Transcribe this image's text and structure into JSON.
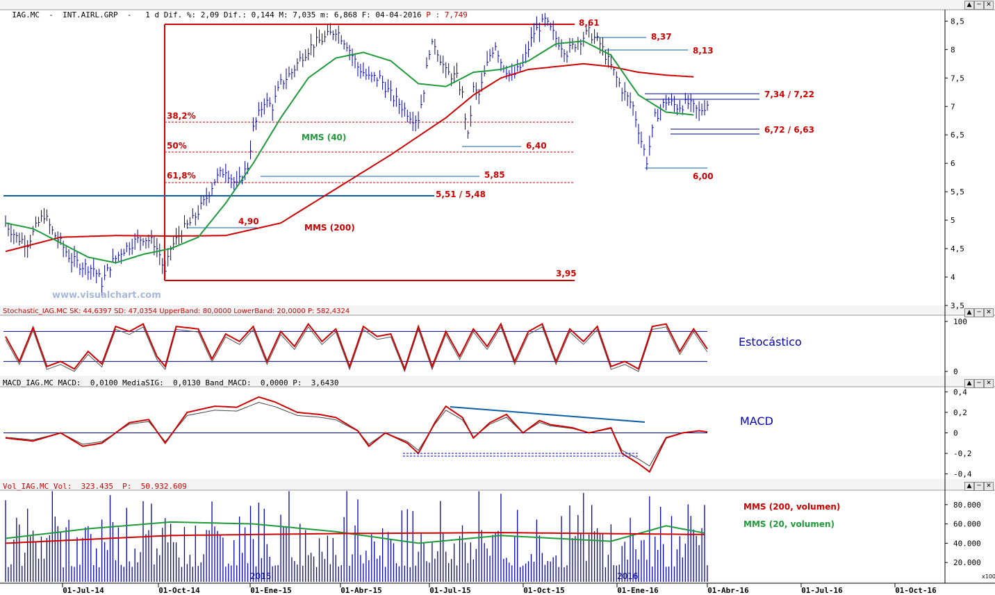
{
  "colors": {
    "price": "#0000a0",
    "red": "#cc0000",
    "green": "#1e9a3a",
    "blue": "#0a5fa8",
    "grid": "#000080"
  },
  "headers": {
    "price_prefix": "IAG.MC  -  INT.AIRL.GRP  -   1 d Dif. %: 2,09 Dif.: 0,144 M: 7,035 m: 6,868 F: 04-04-2016",
    "price_p": " P : 7,749",
    "stoch": "Stochastic_IAG.MC SK: 44,6397 SD: 47,0354 UpperBand: 80,0000 LowerBand: 20,0000 P: 582,4324",
    "macd": "MACD_IAG.MC MACD:  0,0100 MediaSIG:  0,0130 Band_MACD:  0,0000 P:  3,6430",
    "vol": "Vol_IAG.MC Vol:  323.435  P:  50.932.609"
  },
  "watermark": "www.visualchart.com",
  "panel_labels": {
    "stoch": "Estocástico",
    "macd": "MACD"
  },
  "vol_legend": {
    "mms200": "MMS (200, volumen)",
    "mms20": "MMS (20, volumen)"
  },
  "vol_scale_note": "x100",
  "year_markers": [
    "2015",
    "2016"
  ],
  "pane_buttons": [
    "▲",
    "─",
    "✕"
  ],
  "chart_data": [
    {
      "type": "line",
      "title": "IAG.MC - INT.AIRL.GRP - 1 d",
      "x_ticks": [
        "01-Jul-14",
        "01-Oct-14",
        "01-Ene-15",
        "01-Abr-15",
        "01-Jul-15",
        "01-Oct-15",
        "01-Ene-16",
        "01-Abr-16",
        "01-Jul-16",
        "01-Oct-16"
      ],
      "y_ticks": [
        "3,5",
        "4",
        "4,5",
        "5",
        "5,5",
        "6",
        "6,5",
        "7",
        "7,5",
        "8",
        "8,5"
      ],
      "ylim": [
        3.5,
        8.7
      ],
      "series": [
        {
          "name": "price",
          "values": [
            [
              0,
              4.95
            ],
            [
              4,
              4.7
            ],
            [
              8,
              4.6
            ],
            [
              12,
              4.95
            ],
            [
              14,
              5.1
            ],
            [
              17,
              4.8
            ],
            [
              20,
              4.6
            ],
            [
              24,
              4.3
            ],
            [
              28,
              4.2
            ],
            [
              32,
              4.15
            ],
            [
              35,
              3.9
            ],
            [
              38,
              4.2
            ],
            [
              42,
              4.45
            ],
            [
              46,
              4.6
            ],
            [
              50,
              4.7
            ],
            [
              54,
              4.6
            ],
            [
              56,
              4.4
            ],
            [
              58,
              4.05
            ],
            [
              60,
              4.5
            ],
            [
              64,
              4.8
            ],
            [
              68,
              5.0
            ],
            [
              72,
              5.3
            ],
            [
              76,
              5.7
            ],
            [
              80,
              5.9
            ],
            [
              84,
              5.6
            ],
            [
              88,
              5.95
            ],
            [
              90,
              6.6
            ],
            [
              94,
              7.1
            ],
            [
              97,
              7.0
            ],
            [
              100,
              7.4
            ],
            [
              104,
              7.6
            ],
            [
              108,
              7.9
            ],
            [
              112,
              8.1
            ],
            [
              116,
              8.2
            ],
            [
              120,
              8.35
            ],
            [
              124,
              8.1
            ],
            [
              128,
              7.7
            ],
            [
              132,
              7.5
            ],
            [
              136,
              7.5
            ],
            [
              140,
              7.2
            ],
            [
              144,
              7.0
            ],
            [
              148,
              6.8
            ],
            [
              150,
              6.8
            ],
            [
              152,
              7.3
            ],
            [
              154,
              8.0
            ],
            [
              156,
              8.1
            ],
            [
              160,
              7.6
            ],
            [
              164,
              7.5
            ],
            [
              166,
              7.2
            ],
            [
              168,
              6.45
            ],
            [
              170,
              7.3
            ],
            [
              172,
              7.2
            ],
            [
              176,
              7.9
            ],
            [
              178,
              8.1
            ],
            [
              180,
              7.8
            ],
            [
              184,
              7.5
            ],
            [
              188,
              7.75
            ],
            [
              192,
              8.3
            ],
            [
              196,
              8.5
            ],
            [
              200,
              8.2
            ],
            [
              204,
              7.95
            ],
            [
              208,
              8.15
            ],
            [
              212,
              8.3
            ],
            [
              216,
              8.1
            ],
            [
              220,
              7.7
            ],
            [
              224,
              7.3
            ],
            [
              228,
              7.0
            ],
            [
              231,
              6.4
            ],
            [
              233,
              6.05
            ],
            [
              236,
              6.8
            ],
            [
              240,
              7.1
            ],
            [
              244,
              7.0
            ],
            [
              248,
              7.05
            ],
            [
              252,
              6.9
            ],
            [
              255,
              7.05
            ]
          ]
        },
        {
          "name": "MMS (40)",
          "values": [
            [
              0,
              4.95
            ],
            [
              10,
              4.85
            ],
            [
              20,
              4.6
            ],
            [
              30,
              4.35
            ],
            [
              40,
              4.25
            ],
            [
              50,
              4.4
            ],
            [
              60,
              4.5
            ],
            [
              70,
              4.7
            ],
            [
              80,
              5.3
            ],
            [
              90,
              6.0
            ],
            [
              100,
              6.8
            ],
            [
              110,
              7.5
            ],
            [
              120,
              7.85
            ],
            [
              130,
              7.95
            ],
            [
              140,
              7.8
            ],
            [
              150,
              7.4
            ],
            [
              160,
              7.35
            ],
            [
              170,
              7.6
            ],
            [
              180,
              7.65
            ],
            [
              190,
              7.8
            ],
            [
              200,
              8.1
            ],
            [
              210,
              8.15
            ],
            [
              220,
              7.9
            ],
            [
              230,
              7.2
            ],
            [
              240,
              6.9
            ],
            [
              250,
              6.85
            ]
          ]
        },
        {
          "name": "MMS (200)",
          "values": [
            [
              0,
              4.45
            ],
            [
              20,
              4.7
            ],
            [
              40,
              4.73
            ],
            [
              60,
              4.72
            ],
            [
              80,
              4.73
            ],
            [
              100,
              4.95
            ],
            [
              120,
              5.55
            ],
            [
              140,
              6.15
            ],
            [
              160,
              6.8
            ],
            [
              170,
              7.2
            ],
            [
              180,
              7.5
            ],
            [
              190,
              7.65
            ],
            [
              200,
              7.7
            ],
            [
              210,
              7.75
            ],
            [
              220,
              7.7
            ],
            [
              230,
              7.6
            ],
            [
              240,
              7.55
            ],
            [
              250,
              7.52
            ]
          ]
        }
      ],
      "annotations": [
        "8,61",
        "8,37",
        "8,13",
        "7,34 / 7,22",
        "6,72 / 6,63",
        "6,40",
        "6,00",
        "5,85",
        "5,51 / 5,48",
        "4,90",
        "3,95",
        "38,2%",
        "50%",
        "61,8%",
        "MMS (40)",
        "MMS (200)"
      ]
    },
    {
      "type": "line",
      "title": "Stochastic_IAG.MC",
      "y_ticks": [
        "0",
        "100"
      ],
      "ylim": [
        0,
        100
      ],
      "series": [
        {
          "name": "SK",
          "values": [
            [
              0,
              70
            ],
            [
              5,
              20
            ],
            [
              10,
              88
            ],
            [
              15,
              10
            ],
            [
              20,
              20
            ],
            [
              25,
              5
            ],
            [
              30,
              40
            ],
            [
              35,
              15
            ],
            [
              40,
              90
            ],
            [
              45,
              80
            ],
            [
              50,
              95
            ],
            [
              55,
              30
            ],
            [
              58,
              10
            ],
            [
              62,
              90
            ],
            [
              70,
              85
            ],
            [
              75,
              25
            ],
            [
              80,
              75
            ],
            [
              85,
              60
            ],
            [
              90,
              90
            ],
            [
              95,
              20
            ],
            [
              100,
              80
            ],
            [
              105,
              50
            ],
            [
              110,
              95
            ],
            [
              115,
              60
            ],
            [
              120,
              85
            ],
            [
              125,
              10
            ],
            [
              130,
              90
            ],
            [
              135,
              70
            ],
            [
              140,
              75
            ],
            [
              145,
              5
            ],
            [
              150,
              90
            ],
            [
              155,
              10
            ],
            [
              160,
              80
            ],
            [
              165,
              30
            ],
            [
              170,
              85
            ],
            [
              175,
              50
            ],
            [
              180,
              95
            ],
            [
              185,
              20
            ],
            [
              190,
              80
            ],
            [
              195,
              95
            ],
            [
              200,
              20
            ],
            [
              205,
              85
            ],
            [
              210,
              60
            ],
            [
              215,
              90
            ],
            [
              220,
              10
            ],
            [
              225,
              20
            ],
            [
              230,
              5
            ],
            [
              235,
              90
            ],
            [
              240,
              95
            ],
            [
              245,
              40
            ],
            [
              250,
              85
            ],
            [
              255,
              45
            ]
          ]
        }
      ],
      "bands": [
        20,
        80
      ]
    },
    {
      "type": "line",
      "title": "MACD_IAG.MC",
      "y_ticks": [
        "-0,4",
        "-0,2",
        "0",
        "0,2",
        "0,4"
      ],
      "ylim": [
        -0.45,
        0.45
      ],
      "series": [
        {
          "name": "MACD",
          "values": [
            [
              0,
              -0.05
            ],
            [
              10,
              -0.08
            ],
            [
              20,
              0.0
            ],
            [
              28,
              -0.13
            ],
            [
              35,
              -0.1
            ],
            [
              45,
              0.1
            ],
            [
              52,
              0.13
            ],
            [
              58,
              -0.1
            ],
            [
              66,
              0.2
            ],
            [
              76,
              0.26
            ],
            [
              84,
              0.25
            ],
            [
              92,
              0.35
            ],
            [
              98,
              0.3
            ],
            [
              106,
              0.2
            ],
            [
              114,
              0.18
            ],
            [
              120,
              0.15
            ],
            [
              128,
              0.02
            ],
            [
              132,
              -0.13
            ],
            [
              138,
              0.0
            ],
            [
              146,
              -0.1
            ],
            [
              150,
              -0.2
            ],
            [
              156,
              0.1
            ],
            [
              160,
              0.26
            ],
            [
              166,
              0.15
            ],
            [
              170,
              -0.05
            ],
            [
              176,
              0.1
            ],
            [
              182,
              0.18
            ],
            [
              188,
              0.0
            ],
            [
              194,
              0.12
            ],
            [
              198,
              0.08
            ],
            [
              206,
              0.05
            ],
            [
              212,
              0.0
            ],
            [
              220,
              0.05
            ],
            [
              224,
              -0.2
            ],
            [
              230,
              -0.3
            ],
            [
              234,
              -0.38
            ],
            [
              240,
              -0.05
            ],
            [
              246,
              0.0
            ],
            [
              252,
              0.02
            ],
            [
              255,
              0.01
            ]
          ]
        }
      ]
    },
    {
      "type": "bar",
      "title": "Vol_IAG.MC",
      "y_ticks": [
        "20.000",
        "40.000",
        "60.000",
        "80.000"
      ],
      "ylim": [
        0,
        95000
      ],
      "series": [
        {
          "name": "MMS (200, volumen)",
          "values": [
            [
              0,
              40000
            ],
            [
              60,
              48000
            ],
            [
              120,
              50000
            ],
            [
              180,
              51000
            ],
            [
              255,
              49000
            ]
          ]
        },
        {
          "name": "MMS (20, volumen)",
          "values": [
            [
              0,
              45000
            ],
            [
              30,
              55000
            ],
            [
              60,
              62000
            ],
            [
              90,
              60000
            ],
            [
              120,
              52000
            ],
            [
              150,
              40000
            ],
            [
              180,
              48000
            ],
            [
              220,
              42000
            ],
            [
              240,
              58000
            ],
            [
              255,
              50000
            ]
          ]
        }
      ]
    }
  ]
}
